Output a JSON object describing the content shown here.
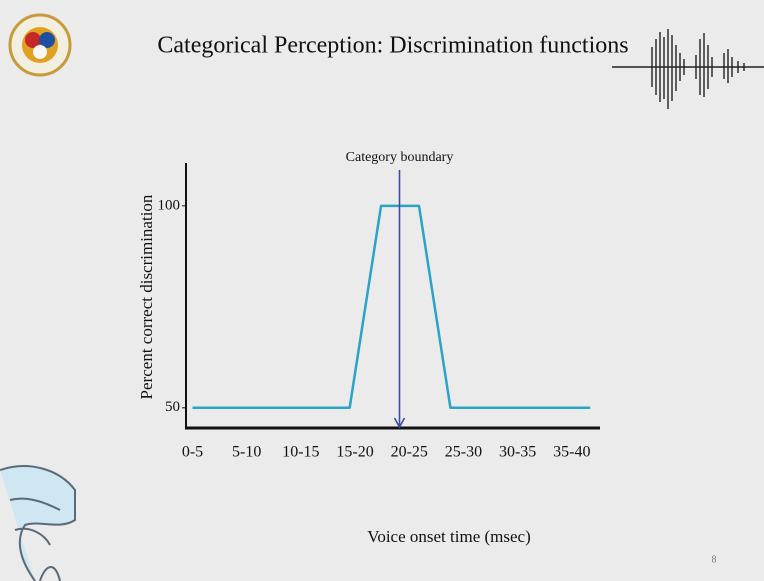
{
  "chart_data": {
    "type": "line",
    "title": "Categorical Perception: Discrimination functions",
    "xlabel": "Voice onset time (msec)",
    "ylabel": "Percent correct discrimination",
    "page_number": "8",
    "annotation": {
      "text": "Category boundary",
      "x": 21.6
    },
    "xlim": [
      1.9,
      40.1
    ],
    "ylim": [
      45,
      110.6
    ],
    "xticks": [
      {
        "value": 2.5,
        "label": "0-5"
      },
      {
        "value": 7.5,
        "label": "5-10"
      },
      {
        "value": 12.5,
        "label": "10-15"
      },
      {
        "value": 17.5,
        "label": "15-20"
      },
      {
        "value": 22.5,
        "label": "20-25"
      },
      {
        "value": 27.5,
        "label": "25-30"
      },
      {
        "value": 32.5,
        "label": "30-35"
      },
      {
        "value": 37.5,
        "label": "35-40"
      }
    ],
    "yticks": [
      50,
      100
    ],
    "series": [
      {
        "color": "#2aa3c9",
        "x": [
          2.5,
          17,
          19.9,
          23.4,
          26.3,
          39.2
        ],
        "values": [
          50,
          50,
          100,
          100,
          50,
          50
        ]
      }
    ],
    "annotation_color": "#3d4c9c"
  }
}
